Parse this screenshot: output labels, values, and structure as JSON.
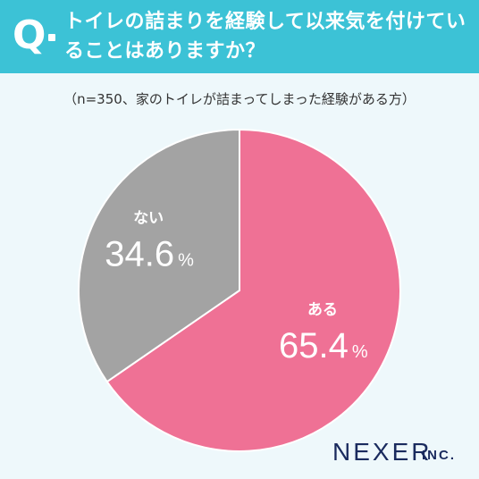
{
  "header": {
    "q_mark": "Q",
    "question": "トイレの詰まりを経験して以来気を付けていることはありますか？"
  },
  "subtitle": "（n=350、家のトイレが詰まってしまった経験がある方）",
  "colors": {
    "header_bg": "#3cc2d6",
    "yes": "#ef7195",
    "no": "#a3a3a3",
    "background": "#eef8fb",
    "logo": "#1a2b5e"
  },
  "chart_data": {
    "type": "pie",
    "categories": [
      "ある",
      "ない"
    ],
    "values": [
      65.4,
      34.6
    ],
    "unit": "%",
    "labels": [
      "65.4",
      "34.6"
    ],
    "start_angle_deg": 0,
    "direction": "clockwise"
  },
  "logo": {
    "main": "NEXER",
    "suffix": "INC."
  }
}
